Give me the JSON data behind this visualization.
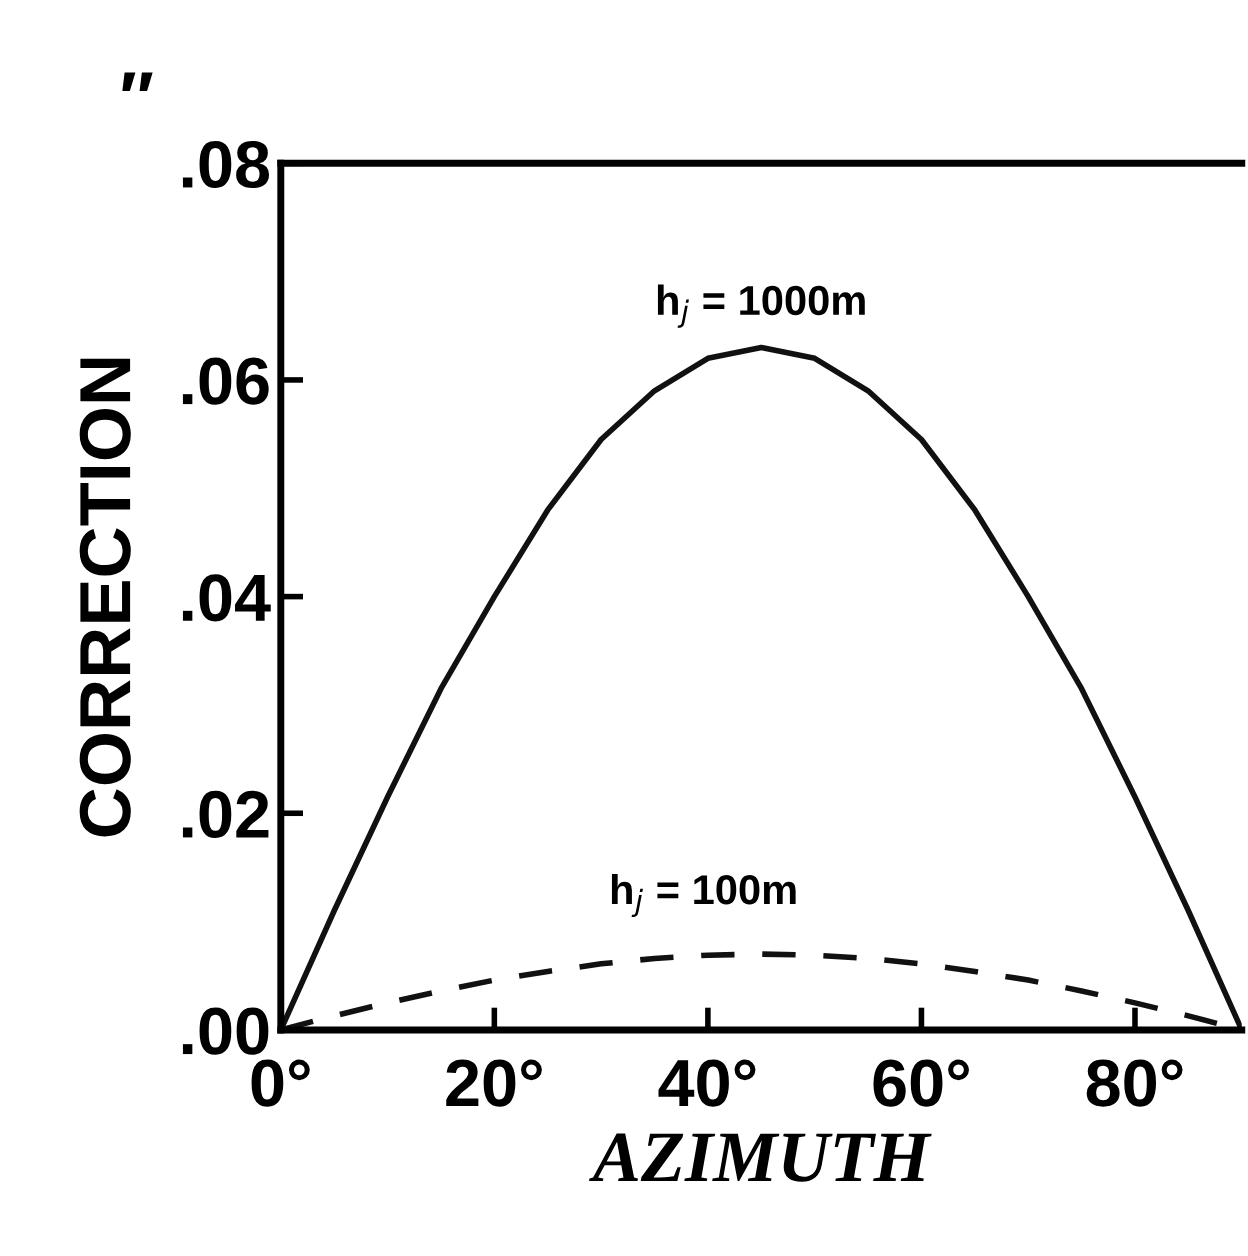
{
  "chart_data": {
    "type": "line",
    "xlabel": "AZIMUTH",
    "ylabel": "CORRECTION",
    "x": [
      0,
      5,
      10,
      15,
      20,
      25,
      30,
      35,
      40,
      45,
      50,
      55,
      60,
      65,
      70,
      75,
      80,
      85,
      90
    ],
    "series": [
      {
        "color": "#111111",
        "line_style": "solid",
        "values": [
          0,
          0.011,
          0.0215,
          0.0315,
          0.04,
          0.048,
          0.0545,
          0.059,
          0.062,
          0.063,
          0.062,
          0.059,
          0.0545,
          0.048,
          0.04,
          0.0315,
          0.0215,
          0.011,
          0
        ]
      },
      {
        "color": "#111111",
        "line_style": "dashed",
        "values": [
          0,
          0.0013,
          0.0025,
          0.0036,
          0.0046,
          0.0054,
          0.0061,
          0.0066,
          0.0069,
          0.007,
          0.0069,
          0.0066,
          0.0061,
          0.0054,
          0.0046,
          0.0036,
          0.0025,
          0.0013,
          0
        ]
      }
    ],
    "annotations": [
      "h$_{j}$ = 1000m",
      "h$_{j}$ = 100m",
      "″"
    ],
    "xlim": [
      0,
      90
    ],
    "ylim": [
      0,
      0.08
    ],
    "xticks": [
      {
        "value": 0,
        "label": "0°"
      },
      {
        "value": 20,
        "label": "20°"
      },
      {
        "value": 40,
        "label": "40°"
      },
      {
        "value": 60,
        "label": "60°"
      },
      {
        "value": 80,
        "label": "80°"
      }
    ],
    "yticks": [
      {
        "value": 0,
        "label": ".00"
      },
      {
        "value": 0.02,
        "label": ".02"
      },
      {
        "value": 0.04,
        "label": ".04"
      },
      {
        "value": 0.06,
        "label": ".06"
      },
      {
        "value": 0.08,
        "label": ".08"
      }
    ],
    "grid": false,
    "legend": false,
    "marker": "none"
  }
}
